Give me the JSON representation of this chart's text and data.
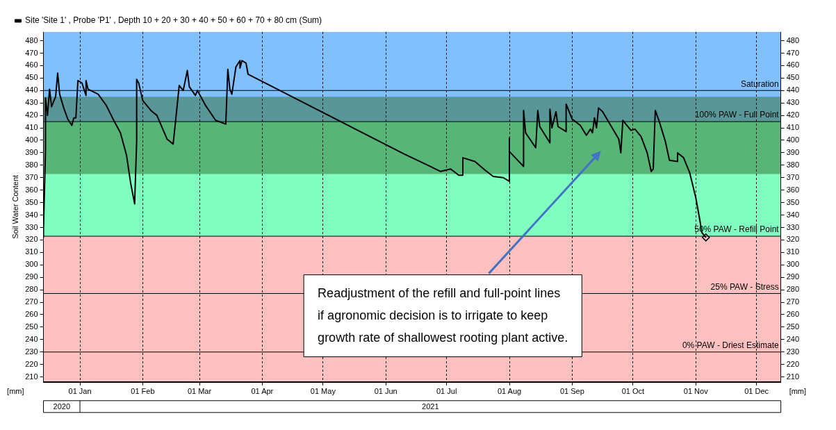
{
  "chart_data": {
    "type": "line",
    "ylabel": "Soil Water Content",
    "xlim": [
      "2020-12-14",
      "2021-12-13"
    ],
    "xticks": [
      {
        "value": "2021-01-01",
        "label": "01 Jan"
      },
      {
        "value": "2021-02-01",
        "label": "01 Feb"
      },
      {
        "value": "2021-03-01",
        "label": "01 Mar"
      },
      {
        "value": "2021-04-01",
        "label": "01 Apr"
      },
      {
        "value": "2021-05-01",
        "label": "01 May"
      },
      {
        "value": "2021-06-01",
        "label": "01 Jun"
      },
      {
        "value": "2021-07-01",
        "label": "01 Jul"
      },
      {
        "value": "2021-08-01",
        "label": "01 Aug"
      },
      {
        "value": "2021-09-01",
        "label": "01 Sep"
      },
      {
        "value": "2021-10-01",
        "label": "01 Oct"
      },
      {
        "value": "2021-11-01",
        "label": "01 Nov"
      },
      {
        "value": "2021-12-01",
        "label": "01 Dec"
      }
    ],
    "ylim": [
      206,
      487
    ],
    "yticks": [
      210,
      220,
      230,
      240,
      250,
      260,
      270,
      280,
      290,
      300,
      310,
      320,
      330,
      340,
      350,
      360,
      370,
      380,
      390,
      400,
      410,
      420,
      430,
      440,
      450,
      460,
      470,
      480
    ],
    "y2lim": [
      206,
      487
    ],
    "y2ticks": [
      210,
      220,
      230,
      240,
      250,
      260,
      270,
      280,
      290,
      300,
      310,
      320,
      330,
      340,
      350,
      360,
      370,
      380,
      390,
      400,
      410,
      420,
      430,
      440,
      450,
      460,
      470,
      480
    ],
    "grid": "x",
    "legend": "top",
    "series": [
      {
        "name": "Site 'Site 1' , Probe 'P1' , Depth 10 + 20 + 30 + 40 + 50 + 60 + 70 + 80 cm (Sum)",
        "color": "#000000",
        "x": [
          "2020-12-14",
          "2020-12-14",
          "2020-12-15",
          "2020-12-15",
          "2020-12-16",
          "2020-12-17",
          "2020-12-18",
          "2020-12-20",
          "2020-12-21",
          "2020-12-22",
          "2020-12-24",
          "2020-12-26",
          "2020-12-28",
          "2020-12-29",
          "2020-12-30",
          "2020-12-31",
          "2021-01-02",
          "2021-01-04",
          "2021-01-04",
          "2021-01-05",
          "2021-01-10",
          "2021-01-14",
          "2021-01-18",
          "2021-01-21",
          "2021-01-24",
          "2021-01-26",
          "2021-01-28",
          "2021-01-29",
          "2021-01-29",
          "2021-01-30",
          "2021-02-01",
          "2021-02-05",
          "2021-02-08",
          "2021-02-13",
          "2021-02-16",
          "2021-02-17",
          "2021-02-19",
          "2021-02-21",
          "2021-02-23",
          "2021-02-24",
          "2021-02-27",
          "2021-02-28",
          "2021-03-04",
          "2021-03-09",
          "2021-03-14",
          "2021-03-15",
          "2021-03-16",
          "2021-03-17",
          "2021-03-19",
          "2021-03-21",
          "2021-03-21",
          "2021-03-22",
          "2021-03-24",
          "2021-03-25",
          "2021-06-10",
          "2021-06-23",
          "2021-06-28",
          "2021-07-03",
          "2021-07-07",
          "2021-07-09",
          "2021-07-09",
          "2021-07-15",
          "2021-07-20",
          "2021-07-24",
          "2021-07-29",
          "2021-08-01",
          "2021-08-01",
          "2021-08-01",
          "2021-08-08",
          "2021-08-08",
          "2021-08-09",
          "2021-08-14",
          "2021-08-15",
          "2021-08-16",
          "2021-08-21",
          "2021-08-21",
          "2021-08-22",
          "2021-08-24",
          "2021-08-25",
          "2021-08-29",
          "2021-08-29",
          "2021-09-01",
          "2021-09-05",
          "2021-09-08",
          "2021-09-10",
          "2021-09-11",
          "2021-09-12",
          "2021-09-13",
          "2021-09-14",
          "2021-09-16",
          "2021-09-20",
          "2021-09-24",
          "2021-09-25",
          "2021-09-26",
          "2021-09-30",
          "2021-10-02",
          "2021-10-05",
          "2021-10-08",
          "2021-10-10",
          "2021-10-11",
          "2021-10-12",
          "2021-10-14",
          "2021-10-17",
          "2021-10-19",
          "2021-10-23",
          "2021-10-23",
          "2021-10-26",
          "2021-10-29",
          "2021-11-01",
          "2021-11-03",
          "2021-11-04",
          "2021-11-06"
        ],
        "values": [
          322,
          328,
          392,
          434,
          420,
          441,
          427,
          435,
          454,
          437,
          426,
          417,
          412,
          418,
          418,
          448,
          446,
          436,
          448,
          441,
          437,
          428,
          415,
          406,
          388,
          366,
          349,
          399,
          449,
          446,
          432,
          424,
          420,
          401,
          397,
          412,
          444,
          440,
          456,
          443,
          436,
          440,
          428,
          416,
          413,
          457,
          441,
          437,
          459,
          464,
          458,
          464,
          462,
          453,
          389,
          379,
          375,
          377,
          372,
          372,
          386,
          383,
          376,
          371,
          370,
          367,
          402,
          391,
          379,
          424,
          406,
          394,
          424,
          411,
          398,
          425,
          410,
          423,
          411,
          407,
          429,
          417,
          412,
          404,
          409,
          406,
          418,
          410,
          426,
          423,
          412,
          401,
          390,
          416,
          408,
          409,
          403,
          390,
          375,
          377,
          424,
          415,
          399,
          384,
          383,
          390,
          386,
          374,
          354,
          336,
          326,
          322
        ]
      },
      {
        "type": "scatter",
        "color": "#000000",
        "marker": "diamond",
        "x": [
          "2021-11-06"
        ],
        "values": [
          322
        ]
      }
    ],
    "bands": [
      {
        "axis": "y",
        "from": 415,
        "to": 487,
        "color": "#80c0ff"
      },
      {
        "axis": "y",
        "from": 323,
        "to": 415,
        "color": "#80ffc0"
      },
      {
        "axis": "y",
        "from": 206,
        "to": 323,
        "color": "#ffc0c0"
      },
      {
        "axis": "y",
        "from": 373,
        "to": 435,
        "color": "#2f6b2f"
      }
    ],
    "ref_lines": [
      {
        "axis": "y",
        "value": 440,
        "label": "Saturation",
        "color": "#000000"
      },
      {
        "axis": "y",
        "value": 415,
        "label": "100% PAW - Full Point",
        "color": "#000000"
      },
      {
        "axis": "y",
        "value": 323,
        "label": "50% PAW - Refill Point",
        "color": "#000000"
      },
      {
        "axis": "y",
        "value": 277,
        "label": "25% PAW - Stress",
        "color": "#000000"
      },
      {
        "axis": "y",
        "value": 230,
        "label": "0% PAW - Driest Estimate",
        "color": "#000000"
      }
    ],
    "annotations": [
      "[mm]",
      "[mm]",
      "2020",
      "2021",
      "Readjustment of the refill and full-point lines\nif agronomic decision is to irrigate to keep\ngrowth rate of shallowest rooting plant active."
    ]
  }
}
